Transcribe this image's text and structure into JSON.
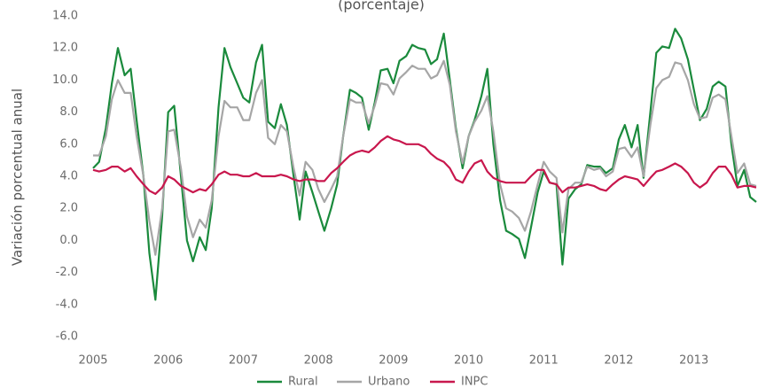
{
  "chart_data": {
    "type": "line",
    "title": "(porcentaje)",
    "y_label": "Variación porcentual anual",
    "x": [
      2005,
      2005.08,
      2005.17,
      2005.25,
      2005.33,
      2005.42,
      2005.5,
      2005.58,
      2005.67,
      2005.75,
      2005.83,
      2005.92,
      2006,
      2006.08,
      2006.17,
      2006.25,
      2006.33,
      2006.42,
      2006.5,
      2006.58,
      2006.67,
      2006.75,
      2006.83,
      2006.92,
      2007,
      2007.08,
      2007.17,
      2007.25,
      2007.33,
      2007.42,
      2007.5,
      2007.58,
      2007.67,
      2007.75,
      2007.83,
      2007.92,
      2008,
      2008.08,
      2008.17,
      2008.25,
      2008.33,
      2008.42,
      2008.5,
      2008.58,
      2008.67,
      2008.75,
      2008.83,
      2008.92,
      2009,
      2009.08,
      2009.17,
      2009.25,
      2009.33,
      2009.42,
      2009.5,
      2009.58,
      2009.67,
      2009.75,
      2009.83,
      2009.92,
      2010,
      2010.08,
      2010.17,
      2010.25,
      2010.33,
      2010.42,
      2010.5,
      2010.58,
      2010.67,
      2010.75,
      2010.83,
      2010.92,
      2011,
      2011.08,
      2011.17,
      2011.25,
      2011.33,
      2011.42,
      2011.5,
      2011.58,
      2011.67,
      2011.75,
      2011.83,
      2011.92,
      2012,
      2012.08,
      2012.17,
      2012.25,
      2012.33,
      2012.42,
      2012.5,
      2012.58,
      2012.67,
      2012.75,
      2012.83,
      2012.92,
      2013,
      2013.08,
      2013.17,
      2013.25,
      2013.33,
      2013.42,
      2013.5,
      2013.58,
      2013.67,
      2013.75,
      2013.83
    ],
    "series": [
      {
        "name": "Rural",
        "color": "#1a8a3c",
        "values": [
          4.5,
          4.9,
          7.0,
          9.8,
          12.0,
          10.3,
          10.7,
          7.5,
          4.0,
          -0.8,
          -3.7,
          1.5,
          8.0,
          8.4,
          4.0,
          0,
          -1.3,
          0.2,
          -0.6,
          2.0,
          8.3,
          12.0,
          10.8,
          9.8,
          8.9,
          8.6,
          11.1,
          12.2,
          7.4,
          7.0,
          8.5,
          7.2,
          4.0,
          1.3,
          4.3,
          3.0,
          1.8,
          0.6,
          2.0,
          3.5,
          6.5,
          9.4,
          9.2,
          8.9,
          6.9,
          8.6,
          10.6,
          10.7,
          9.8,
          11.2,
          11.5,
          12.2,
          12.0,
          11.9,
          11.0,
          11.3,
          12.9,
          10.0,
          7.0,
          4.5,
          6.5,
          7.5,
          9.0,
          10.7,
          6.0,
          2.5,
          0.6,
          0.4,
          0.1,
          -1.1,
          0.8,
          3.0,
          4.3,
          3.6,
          3.5,
          -1.5,
          2.6,
          3.2,
          3.5,
          4.7,
          4.6,
          4.6,
          4.2,
          4.5,
          6.3,
          7.2,
          5.8,
          7.2,
          3.9,
          8.0,
          11.7,
          12.1,
          12.0,
          13.2,
          12.6,
          11.3,
          9.4,
          7.5,
          8.2,
          9.6,
          9.9,
          9.6,
          6.0,
          3.4,
          4.4,
          2.7,
          2.4
        ]
      },
      {
        "name": "Urbano",
        "color": "#a6a6a6",
        "values": [
          5.3,
          5.3,
          6.5,
          8.8,
          10.0,
          9.2,
          9.2,
          6.5,
          4.0,
          1.2,
          -0.9,
          2.0,
          6.8,
          6.9,
          4.5,
          1.5,
          0.2,
          1.3,
          0.8,
          2.5,
          6.5,
          8.7,
          8.3,
          8.3,
          7.5,
          7.5,
          9.2,
          10.0,
          6.4,
          6.0,
          7.2,
          6.8,
          4.5,
          2.8,
          4.9,
          4.4,
          3.2,
          2.4,
          3.2,
          4.0,
          6.5,
          8.8,
          8.6,
          8.6,
          7.3,
          8.4,
          9.8,
          9.7,
          9.1,
          10.1,
          10.5,
          10.9,
          10.7,
          10.7,
          10.1,
          10.3,
          11.2,
          9.7,
          6.8,
          4.8,
          6.5,
          7.4,
          8.1,
          9.0,
          6.8,
          3.5,
          2.0,
          1.8,
          1.4,
          0.6,
          1.8,
          3.5,
          4.9,
          4.3,
          3.9,
          0.5,
          3.2,
          3.6,
          3.6,
          4.6,
          4.4,
          4.5,
          4.0,
          4.3,
          5.7,
          5.8,
          5.2,
          5.8,
          4.0,
          7.2,
          9.5,
          10.0,
          10.2,
          11.1,
          11.0,
          10.0,
          8.5,
          7.6,
          7.7,
          8.9,
          9.1,
          8.8,
          6.5,
          4.2,
          4.8,
          3.5,
          3.4
        ]
      },
      {
        "name": "INPC",
        "color": "#c8174d",
        "values": [
          4.4,
          4.3,
          4.4,
          4.6,
          4.6,
          4.3,
          4.5,
          4.0,
          3.5,
          3.1,
          2.9,
          3.3,
          4.0,
          3.8,
          3.4,
          3.2,
          3.0,
          3.2,
          3.1,
          3.5,
          4.1,
          4.3,
          4.1,
          4.1,
          4.0,
          4.0,
          4.2,
          4.0,
          4.0,
          4.0,
          4.1,
          4.0,
          3.8,
          3.7,
          3.8,
          3.8,
          3.7,
          3.7,
          4.2,
          4.5,
          4.9,
          5.3,
          5.5,
          5.6,
          5.5,
          5.8,
          6.2,
          6.5,
          6.3,
          6.2,
          6.0,
          6.0,
          6.0,
          5.8,
          5.4,
          5.1,
          4.9,
          4.5,
          3.8,
          3.6,
          4.3,
          4.8,
          5.0,
          4.3,
          3.9,
          3.7,
          3.6,
          3.6,
          3.6,
          3.6,
          4.0,
          4.4,
          4.4,
          3.6,
          3.5,
          3.0,
          3.3,
          3.3,
          3.4,
          3.5,
          3.4,
          3.2,
          3.1,
          3.5,
          3.8,
          4.0,
          3.9,
          3.8,
          3.4,
          3.9,
          4.3,
          4.4,
          4.6,
          4.8,
          4.6,
          4.2,
          3.6,
          3.3,
          3.6,
          4.2,
          4.6,
          4.6,
          4.1,
          3.3,
          3.4,
          3.4,
          3.3
        ]
      }
    ],
    "xlim": [
      2005,
      2013.83
    ],
    "xticks": [
      2005,
      2006,
      2007,
      2008,
      2009,
      2010,
      2011,
      2012,
      2013
    ],
    "ylim": [
      -6,
      14
    ],
    "yticks": [
      {
        "value": -6,
        "label": "-6.0"
      },
      {
        "value": -4,
        "label": "-4.0"
      },
      {
        "value": -2,
        "label": "-2.0"
      },
      {
        "value": 0,
        "label": "0.0"
      },
      {
        "value": 2,
        "label": "2.0"
      },
      {
        "value": 4,
        "label": "4.0"
      },
      {
        "value": 6,
        "label": "6.0"
      },
      {
        "value": 8,
        "label": "8.0"
      },
      {
        "value": 10,
        "label": "10.0"
      },
      {
        "value": 12,
        "label": "12.0"
      },
      {
        "value": 14,
        "label": "14.0"
      }
    ],
    "grid": false,
    "legend": "bottom"
  }
}
